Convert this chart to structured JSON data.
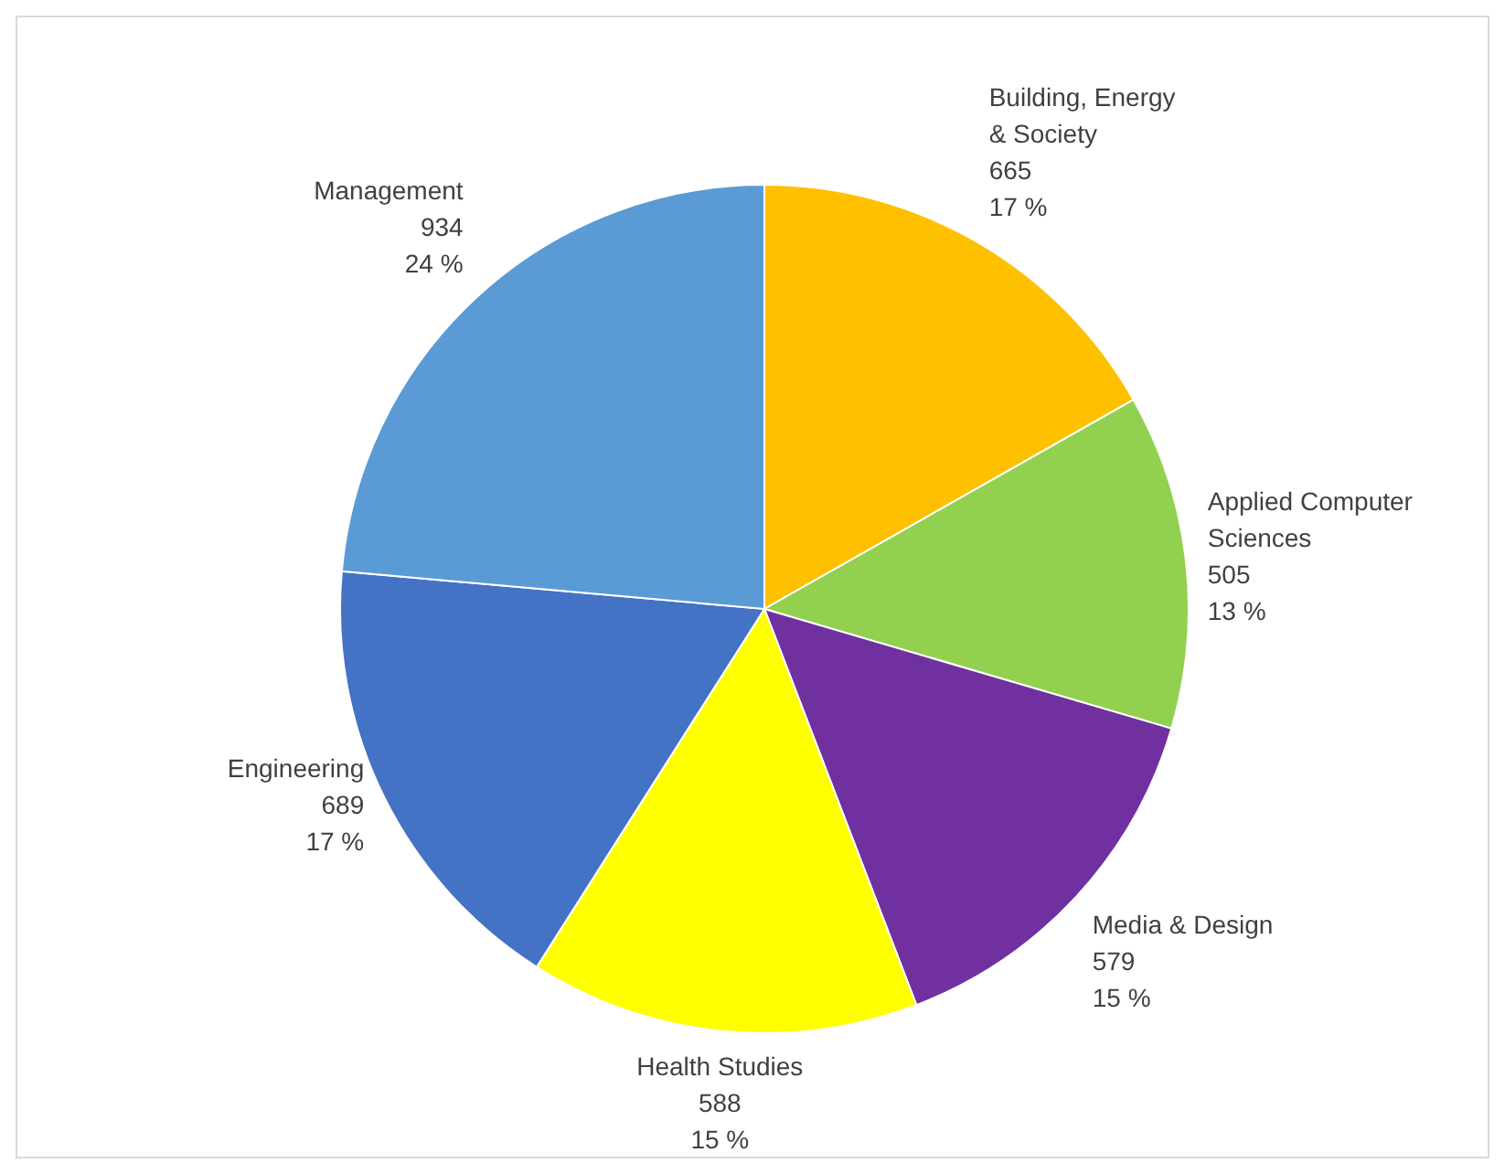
{
  "chart_data": {
    "type": "pie",
    "categories": [
      "Building, Energy & Society",
      "Applied Computer Sciences",
      "Media & Design",
      "Health Studies",
      "Engineering",
      "Management"
    ],
    "values": [
      665,
      505,
      579,
      588,
      689,
      934
    ],
    "colors": [
      "#ffc000",
      "#92d050",
      "#7030a0",
      "#ffff00",
      "#4472c4",
      "#5b9bd5"
    ],
    "value_labels": [
      "665\n17 %",
      "505\n13 %",
      "579\n15 %",
      "588\n15 %",
      "689\n17 %",
      "934\n24 %"
    ]
  }
}
